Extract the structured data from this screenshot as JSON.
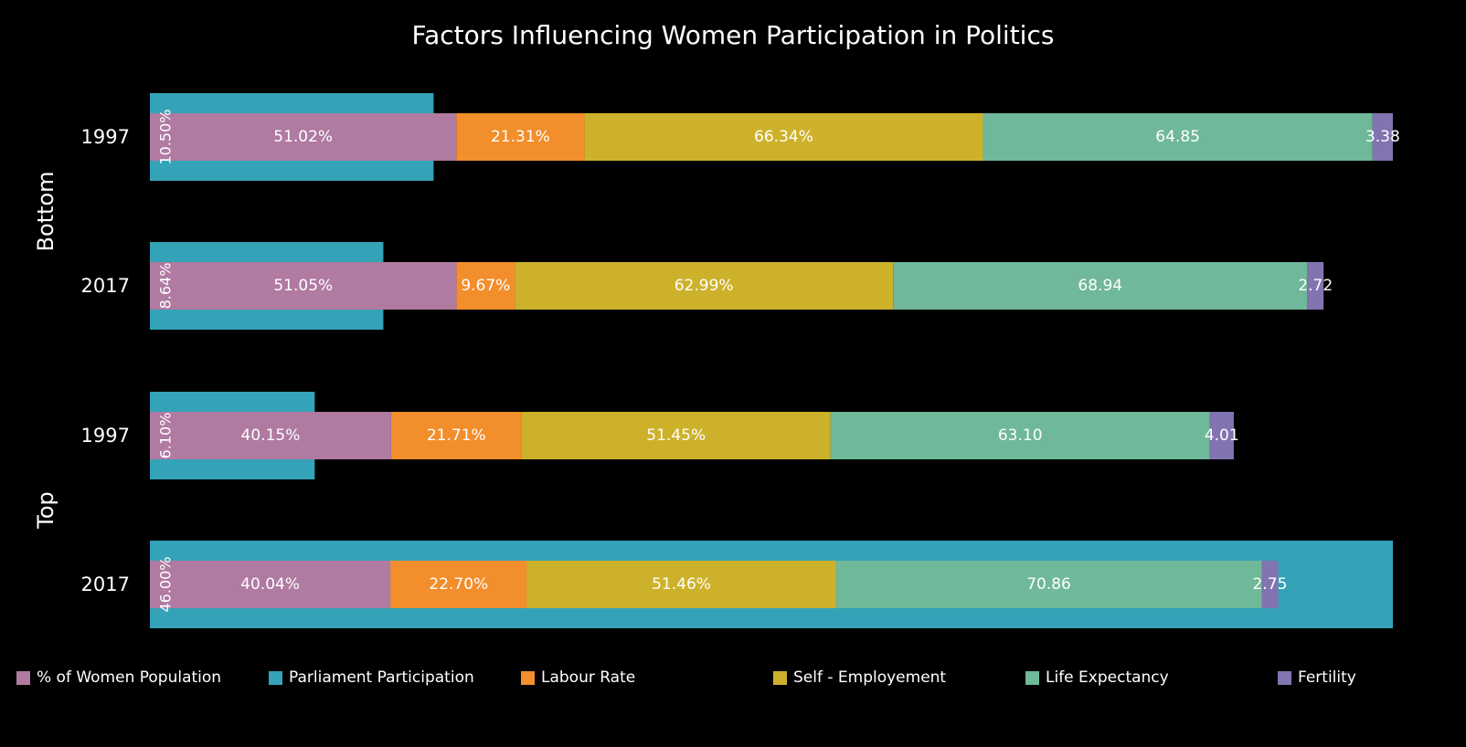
{
  "title": "Factors Influencing Women Participation in Politics",
  "chart_data": {
    "type": "bar",
    "orientation": "horizontal",
    "stacked": true,
    "groups": [
      {
        "name": "Bottom",
        "rows": [
          "1997",
          "2017"
        ]
      },
      {
        "name": "Top",
        "rows": [
          "1997",
          "2017"
        ]
      }
    ],
    "series": [
      {
        "name": "% of Women Population",
        "color": "#B07AA1",
        "values": [
          51.02,
          51.05,
          40.15,
          40.04
        ],
        "labels": [
          "51.02%",
          "51.05%",
          "40.15%",
          "40.04%"
        ]
      },
      {
        "name": "Labour Rate",
        "color": "#F28E2B",
        "values": [
          21.31,
          9.67,
          21.71,
          22.7
        ],
        "labels": [
          "21.31%",
          "9.67%",
          "21.71%",
          "22.70%"
        ]
      },
      {
        "name": "Self - Employement",
        "color": "#CDB12B",
        "values": [
          66.34,
          62.99,
          51.45,
          51.46
        ],
        "labels": [
          "66.34%",
          "62.99%",
          "51.45%",
          "51.46%"
        ]
      },
      {
        "name": "Life Expectancy",
        "color": "#6FB899",
        "values": [
          64.85,
          68.94,
          63.1,
          70.86
        ],
        "labels": [
          "64.85",
          "68.94",
          "63.10",
          "70.86"
        ]
      },
      {
        "name": "Fertility",
        "color": "#8274B0",
        "values": [
          3.38,
          2.72,
          4.01,
          2.75
        ],
        "labels": [
          "3.38",
          "2.72",
          "4.01",
          "2.75"
        ]
      }
    ],
    "background_series": {
      "name": "Parliament Participation",
      "color": "#34A3B8",
      "values": [
        10.5,
        8.64,
        6.1,
        46.0
      ],
      "labels": [
        "10.50%",
        "8.64%",
        "6.10%",
        "46.00%"
      ]
    },
    "legend": {
      "position": "bottom",
      "items": [
        {
          "name": "% of Women Population",
          "color": "#B07AA1"
        },
        {
          "name": "Parliament Participation",
          "color": "#34A3B8"
        },
        {
          "name": "Labour Rate",
          "color": "#F28E2B"
        },
        {
          "name": "Self - Employement",
          "color": "#CDB12B"
        },
        {
          "name": "Life Expectancy",
          "color": "#6FB899"
        },
        {
          "name": "Fertility",
          "color": "#8274B0"
        }
      ]
    },
    "axis_visible": false,
    "grid": false
  }
}
